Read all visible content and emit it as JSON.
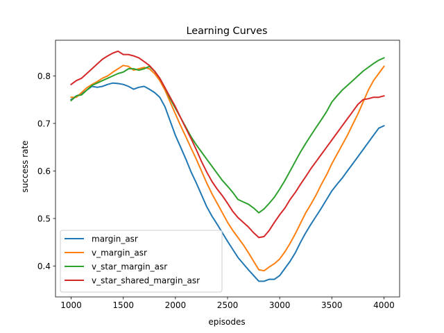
{
  "chart_data": {
    "type": "line",
    "title": "Learning Curves",
    "xlabel": "episodes",
    "ylabel": "success rate",
    "xlim": [
      850,
      4150
    ],
    "ylim": [
      0.335,
      0.875
    ],
    "xticks": [
      1000,
      1500,
      2000,
      2500,
      3000,
      3500,
      4000
    ],
    "xtick_labels": [
      "1000",
      "1500",
      "2000",
      "2500",
      "3000",
      "3500",
      "4000"
    ],
    "yticks": [
      0.4,
      0.5,
      0.6,
      0.7,
      0.8
    ],
    "ytick_labels": [
      "0.4",
      "0.5",
      "0.6",
      "0.7",
      "0.8"
    ],
    "grid": false,
    "legend_position": "lower-left",
    "series": [
      {
        "name": "margin_asr",
        "color": "#1f77b4",
        "points": [
          [
            1000,
            0.75
          ],
          [
            1050,
            0.758
          ],
          [
            1100,
            0.762
          ],
          [
            1150,
            0.77
          ],
          [
            1200,
            0.778
          ],
          [
            1250,
            0.776
          ],
          [
            1300,
            0.778
          ],
          [
            1350,
            0.782
          ],
          [
            1400,
            0.785
          ],
          [
            1450,
            0.784
          ],
          [
            1500,
            0.782
          ],
          [
            1550,
            0.778
          ],
          [
            1600,
            0.772
          ],
          [
            1650,
            0.776
          ],
          [
            1700,
            0.778
          ],
          [
            1750,
            0.772
          ],
          [
            1800,
            0.765
          ],
          [
            1850,
            0.755
          ],
          [
            1900,
            0.735
          ],
          [
            1950,
            0.705
          ],
          [
            2000,
            0.675
          ],
          [
            2050,
            0.65
          ],
          [
            2100,
            0.625
          ],
          [
            2150,
            0.598
          ],
          [
            2200,
            0.575
          ],
          [
            2250,
            0.55
          ],
          [
            2300,
            0.525
          ],
          [
            2350,
            0.505
          ],
          [
            2400,
            0.488
          ],
          [
            2450,
            0.47
          ],
          [
            2500,
            0.452
          ],
          [
            2550,
            0.435
          ],
          [
            2600,
            0.418
          ],
          [
            2650,
            0.405
          ],
          [
            2700,
            0.392
          ],
          [
            2750,
            0.38
          ],
          [
            2800,
            0.368
          ],
          [
            2850,
            0.368
          ],
          [
            2900,
            0.372
          ],
          [
            2950,
            0.372
          ],
          [
            3000,
            0.38
          ],
          [
            3050,
            0.395
          ],
          [
            3100,
            0.41
          ],
          [
            3150,
            0.428
          ],
          [
            3200,
            0.45
          ],
          [
            3250,
            0.47
          ],
          [
            3300,
            0.488
          ],
          [
            3350,
            0.505
          ],
          [
            3400,
            0.522
          ],
          [
            3450,
            0.54
          ],
          [
            3500,
            0.558
          ],
          [
            3550,
            0.572
          ],
          [
            3600,
            0.585
          ],
          [
            3650,
            0.6
          ],
          [
            3700,
            0.615
          ],
          [
            3750,
            0.63
          ],
          [
            3800,
            0.645
          ],
          [
            3850,
            0.66
          ],
          [
            3900,
            0.675
          ],
          [
            3950,
            0.69
          ],
          [
            4000,
            0.695
          ]
        ]
      },
      {
        "name": "v_margin_asr",
        "color": "#ff7f0e",
        "points": [
          [
            1000,
            0.755
          ],
          [
            1050,
            0.755
          ],
          [
            1100,
            0.765
          ],
          [
            1150,
            0.775
          ],
          [
            1200,
            0.782
          ],
          [
            1250,
            0.788
          ],
          [
            1300,
            0.795
          ],
          [
            1350,
            0.8
          ],
          [
            1400,
            0.808
          ],
          [
            1450,
            0.815
          ],
          [
            1500,
            0.822
          ],
          [
            1550,
            0.82
          ],
          [
            1600,
            0.812
          ],
          [
            1650,
            0.815
          ],
          [
            1700,
            0.818
          ],
          [
            1750,
            0.815
          ],
          [
            1800,
            0.805
          ],
          [
            1850,
            0.79
          ],
          [
            1900,
            0.77
          ],
          [
            1950,
            0.745
          ],
          [
            2000,
            0.72
          ],
          [
            2050,
            0.695
          ],
          [
            2100,
            0.672
          ],
          [
            2150,
            0.648
          ],
          [
            2200,
            0.625
          ],
          [
            2250,
            0.6
          ],
          [
            2300,
            0.575
          ],
          [
            2350,
            0.552
          ],
          [
            2400,
            0.532
          ],
          [
            2450,
            0.512
          ],
          [
            2500,
            0.492
          ],
          [
            2550,
            0.475
          ],
          [
            2600,
            0.46
          ],
          [
            2650,
            0.445
          ],
          [
            2700,
            0.428
          ],
          [
            2750,
            0.41
          ],
          [
            2800,
            0.392
          ],
          [
            2850,
            0.39
          ],
          [
            2900,
            0.398
          ],
          [
            2950,
            0.405
          ],
          [
            3000,
            0.415
          ],
          [
            3050,
            0.43
          ],
          [
            3100,
            0.448
          ],
          [
            3150,
            0.468
          ],
          [
            3200,
            0.49
          ],
          [
            3250,
            0.512
          ],
          [
            3300,
            0.53
          ],
          [
            3350,
            0.55
          ],
          [
            3400,
            0.572
          ],
          [
            3450,
            0.592
          ],
          [
            3500,
            0.615
          ],
          [
            3550,
            0.635
          ],
          [
            3600,
            0.655
          ],
          [
            3650,
            0.675
          ],
          [
            3700,
            0.698
          ],
          [
            3750,
            0.72
          ],
          [
            3800,
            0.745
          ],
          [
            3850,
            0.77
          ],
          [
            3900,
            0.79
          ],
          [
            3950,
            0.805
          ],
          [
            4000,
            0.82
          ]
        ]
      },
      {
        "name": "v_star_margin_asr",
        "color": "#2ca02c",
        "points": [
          [
            1000,
            0.748
          ],
          [
            1050,
            0.758
          ],
          [
            1100,
            0.76
          ],
          [
            1150,
            0.77
          ],
          [
            1200,
            0.78
          ],
          [
            1250,
            0.785
          ],
          [
            1300,
            0.79
          ],
          [
            1350,
            0.795
          ],
          [
            1400,
            0.8
          ],
          [
            1450,
            0.805
          ],
          [
            1500,
            0.808
          ],
          [
            1550,
            0.815
          ],
          [
            1600,
            0.815
          ],
          [
            1650,
            0.812
          ],
          [
            1700,
            0.815
          ],
          [
            1750,
            0.82
          ],
          [
            1800,
            0.81
          ],
          [
            1850,
            0.795
          ],
          [
            1900,
            0.775
          ],
          [
            1950,
            0.752
          ],
          [
            2000,
            0.732
          ],
          [
            2050,
            0.712
          ],
          [
            2100,
            0.692
          ],
          [
            2150,
            0.672
          ],
          [
            2200,
            0.655
          ],
          [
            2250,
            0.64
          ],
          [
            2300,
            0.625
          ],
          [
            2350,
            0.61
          ],
          [
            2400,
            0.595
          ],
          [
            2450,
            0.58
          ],
          [
            2500,
            0.568
          ],
          [
            2550,
            0.555
          ],
          [
            2600,
            0.54
          ],
          [
            2650,
            0.535
          ],
          [
            2700,
            0.53
          ],
          [
            2750,
            0.522
          ],
          [
            2800,
            0.512
          ],
          [
            2850,
            0.52
          ],
          [
            2900,
            0.532
          ],
          [
            2950,
            0.545
          ],
          [
            3000,
            0.562
          ],
          [
            3050,
            0.58
          ],
          [
            3100,
            0.6
          ],
          [
            3150,
            0.62
          ],
          [
            3200,
            0.64
          ],
          [
            3250,
            0.658
          ],
          [
            3300,
            0.675
          ],
          [
            3350,
            0.692
          ],
          [
            3400,
            0.708
          ],
          [
            3450,
            0.725
          ],
          [
            3500,
            0.745
          ],
          [
            3550,
            0.758
          ],
          [
            3600,
            0.77
          ],
          [
            3650,
            0.78
          ],
          [
            3700,
            0.79
          ],
          [
            3750,
            0.8
          ],
          [
            3800,
            0.81
          ],
          [
            3850,
            0.818
          ],
          [
            3900,
            0.826
          ],
          [
            3950,
            0.833
          ],
          [
            4000,
            0.838
          ]
        ]
      },
      {
        "name": "v_star_shared_margin_asr",
        "color": "#d62728",
        "points": [
          [
            1000,
            0.782
          ],
          [
            1050,
            0.79
          ],
          [
            1100,
            0.795
          ],
          [
            1150,
            0.805
          ],
          [
            1200,
            0.815
          ],
          [
            1250,
            0.825
          ],
          [
            1300,
            0.835
          ],
          [
            1350,
            0.842
          ],
          [
            1400,
            0.848
          ],
          [
            1450,
            0.852
          ],
          [
            1500,
            0.845
          ],
          [
            1550,
            0.845
          ],
          [
            1600,
            0.842
          ],
          [
            1650,
            0.838
          ],
          [
            1700,
            0.83
          ],
          [
            1750,
            0.822
          ],
          [
            1800,
            0.81
          ],
          [
            1850,
            0.795
          ],
          [
            1900,
            0.775
          ],
          [
            1950,
            0.755
          ],
          [
            2000,
            0.735
          ],
          [
            2050,
            0.712
          ],
          [
            2100,
            0.69
          ],
          [
            2150,
            0.668
          ],
          [
            2200,
            0.645
          ],
          [
            2250,
            0.62
          ],
          [
            2300,
            0.598
          ],
          [
            2350,
            0.578
          ],
          [
            2400,
            0.562
          ],
          [
            2450,
            0.548
          ],
          [
            2500,
            0.532
          ],
          [
            2550,
            0.515
          ],
          [
            2600,
            0.502
          ],
          [
            2650,
            0.492
          ],
          [
            2700,
            0.482
          ],
          [
            2750,
            0.47
          ],
          [
            2800,
            0.46
          ],
          [
            2850,
            0.462
          ],
          [
            2900,
            0.475
          ],
          [
            2950,
            0.492
          ],
          [
            3000,
            0.508
          ],
          [
            3050,
            0.522
          ],
          [
            3100,
            0.54
          ],
          [
            3150,
            0.555
          ],
          [
            3200,
            0.572
          ],
          [
            3250,
            0.588
          ],
          [
            3300,
            0.605
          ],
          [
            3350,
            0.62
          ],
          [
            3400,
            0.635
          ],
          [
            3450,
            0.65
          ],
          [
            3500,
            0.665
          ],
          [
            3550,
            0.68
          ],
          [
            3600,
            0.695
          ],
          [
            3650,
            0.71
          ],
          [
            3700,
            0.725
          ],
          [
            3750,
            0.74
          ],
          [
            3800,
            0.75
          ],
          [
            3850,
            0.752
          ],
          [
            3900,
            0.755
          ],
          [
            3950,
            0.755
          ],
          [
            4000,
            0.758
          ]
        ]
      }
    ]
  }
}
